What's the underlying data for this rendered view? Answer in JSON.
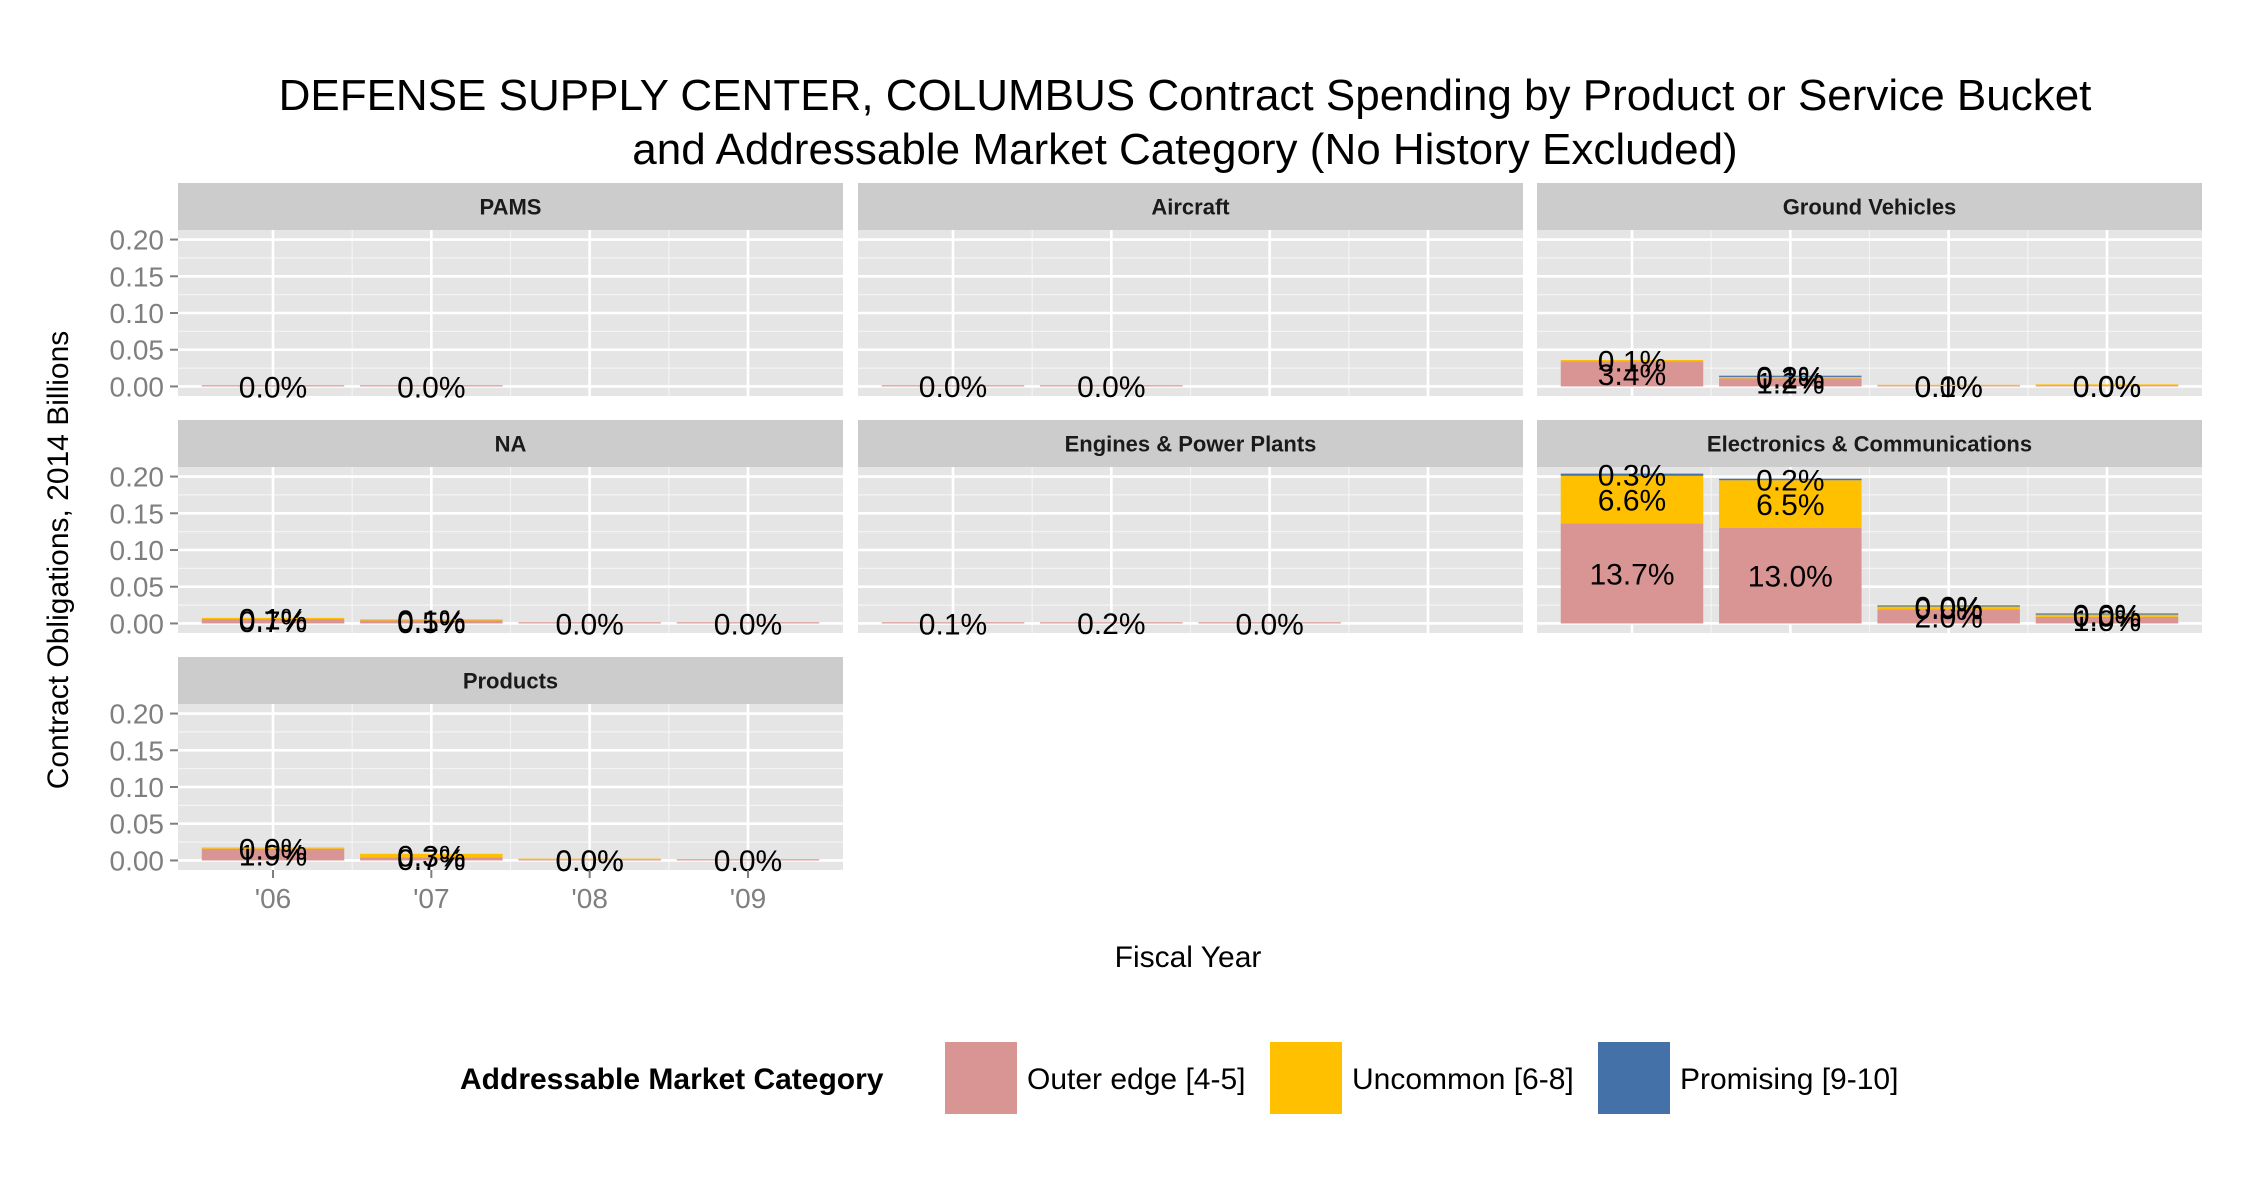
{
  "chart_data": {
    "type": "bar",
    "stacked": true,
    "title_lines": [
      "DEFENSE SUPPLY CENTER, COLUMBUS Contract Spending by Product or Service Bucket",
      "and Addressable Market Category (No History Excluded)"
    ],
    "xlabel": "Fiscal Year",
    "ylabel": "Contract Obligations, 2014 Billions",
    "ylim": [
      0,
      0.2
    ],
    "y_ticks": [
      "0.00",
      "0.05",
      "0.10",
      "0.15",
      "0.20"
    ],
    "x_ticks": [
      "'06",
      "'07",
      "'08",
      "'09"
    ],
    "grid": true,
    "legend": {
      "title": "Addressable Market Category",
      "position": "bottom",
      "entries": [
        {
          "name": "Outer edge [4-5]",
          "color": "#d99594"
        },
        {
          "name": "Uncommon [6-8]",
          "color": "#ffc000"
        },
        {
          "name": "Promising [9-10]",
          "color": "#4472a8"
        }
      ]
    },
    "colors": {
      "panel_bg": "#e5e5e5",
      "strip_bg": "#cccccc",
      "grid": "#ffffff"
    },
    "facets": [
      {
        "name": "PAMS",
        "bars": [
          {
            "year": "'06",
            "segments": [
              {
                "category": "Outer edge [4-5]",
                "value": 0.0,
                "label": "0.0%"
              }
            ]
          },
          {
            "year": "'07",
            "segments": [
              {
                "category": "Outer edge [4-5]",
                "value": 0.0,
                "label": "0.0%"
              }
            ]
          }
        ]
      },
      {
        "name": "Aircraft",
        "bars": [
          {
            "year": "'06",
            "segments": [
              {
                "category": "Outer edge [4-5]",
                "value": 0.0006,
                "label": "0.0%"
              }
            ]
          },
          {
            "year": "'07",
            "segments": [
              {
                "category": "Outer edge [4-5]",
                "value": 0.0006,
                "label": "0.0%"
              }
            ]
          }
        ]
      },
      {
        "name": "Ground Vehicles",
        "bars": [
          {
            "year": "'06",
            "segments": [
              {
                "category": "Outer edge [4-5]",
                "value": 0.034,
                "label": "3.4%"
              },
              {
                "category": "Uncommon [6-8]",
                "value": 0.002,
                "label": "0.1%"
              }
            ]
          },
          {
            "year": "'07",
            "segments": [
              {
                "category": "Outer edge [4-5]",
                "value": 0.011,
                "label": "1.2%"
              },
              {
                "category": "Uncommon [6-8]",
                "value": 0.002,
                "label": "0.1%"
              },
              {
                "category": "Promising [9-10]",
                "value": 0.0005,
                "label": "0.2%"
              }
            ]
          },
          {
            "year": "'08",
            "segments": [
              {
                "category": "Outer edge [4-5]",
                "value": 0.0006,
                "label": "0.0%"
              },
              {
                "category": "Uncommon [6-8]",
                "value": 0.0004,
                "label": "0.1%"
              }
            ]
          },
          {
            "year": "'09",
            "segments": [
              {
                "category": "Outer edge [4-5]",
                "value": 0.0012,
                "label": "0.0%"
              },
              {
                "category": "Uncommon [6-8]",
                "value": 0.0004,
                "label": "0.0%"
              }
            ]
          }
        ]
      },
      {
        "name": "NA",
        "bars": [
          {
            "year": "'06",
            "segments": [
              {
                "category": "Outer edge [4-5]",
                "value": 0.006,
                "label": "0.7%"
              },
              {
                "category": "Uncommon [6-8]",
                "value": 0.001,
                "label": "0.1%"
              }
            ]
          },
          {
            "year": "'07",
            "segments": [
              {
                "category": "Outer edge [4-5]",
                "value": 0.004,
                "label": "0.5%"
              },
              {
                "category": "Uncommon [6-8]",
                "value": 0.001,
                "label": "0.1%"
              }
            ]
          },
          {
            "year": "'08",
            "segments": [
              {
                "category": "Outer edge [4-5]",
                "value": 0.0,
                "label": "0.0%"
              }
            ]
          },
          {
            "year": "'09",
            "segments": [
              {
                "category": "Outer edge [4-5]",
                "value": 0.0,
                "label": "0.0%"
              }
            ]
          }
        ]
      },
      {
        "name": "Engines & Power Plants",
        "bars": [
          {
            "year": "'06",
            "segments": [
              {
                "category": "Outer edge [4-5]",
                "value": 0.0,
                "label": "0.1%"
              }
            ]
          },
          {
            "year": "'07",
            "segments": [
              {
                "category": "Outer edge [4-5]",
                "value": 0.0012,
                "label": "0.2%"
              }
            ]
          },
          {
            "year": "'08",
            "segments": [
              {
                "category": "Outer edge [4-5]",
                "value": 0.0,
                "label": "0.0%"
              }
            ]
          }
        ]
      },
      {
        "name": "Electronics & Communications",
        "bars": [
          {
            "year": "'06",
            "segments": [
              {
                "category": "Outer edge [4-5]",
                "value": 0.136,
                "label": "13.7%"
              },
              {
                "category": "Uncommon [6-8]",
                "value": 0.065,
                "label": "6.6%"
              },
              {
                "category": "Promising [9-10]",
                "value": 0.003,
                "label": "0.3%"
              }
            ]
          },
          {
            "year": "'07",
            "segments": [
              {
                "category": "Outer edge [4-5]",
                "value": 0.13,
                "label": "13.0%"
              },
              {
                "category": "Uncommon [6-8]",
                "value": 0.065,
                "label": "6.5%"
              },
              {
                "category": "Promising [9-10]",
                "value": 0.002,
                "label": "0.2%"
              }
            ]
          },
          {
            "year": "'08",
            "segments": [
              {
                "category": "Outer edge [4-5]",
                "value": 0.019,
                "label": "2.0%"
              },
              {
                "category": "Uncommon [6-8]",
                "value": 0.004,
                "label": "0.0%"
              },
              {
                "category": "Promising [9-10]",
                "value": 0.0004,
                "label": "0.0%"
              }
            ]
          },
          {
            "year": "'09",
            "segments": [
              {
                "category": "Outer edge [4-5]",
                "value": 0.009,
                "label": "1.0%"
              },
              {
                "category": "Uncommon [6-8]",
                "value": 0.003,
                "label": "0.0%"
              },
              {
                "category": "Promising [9-10]",
                "value": 0.0004,
                "label": "0.0%"
              }
            ]
          }
        ]
      },
      {
        "name": "Products",
        "bars": [
          {
            "year": "'06",
            "segments": [
              {
                "category": "Outer edge [4-5]",
                "value": 0.016,
                "label": "1.9%"
              },
              {
                "category": "Uncommon [6-8]",
                "value": 0.001,
                "label": "0.0%"
              }
            ]
          },
          {
            "year": "'07",
            "segments": [
              {
                "category": "Outer edge [4-5]",
                "value": 0.004,
                "label": "0.7%"
              },
              {
                "category": "Uncommon [6-8]",
                "value": 0.005,
                "label": "0.3%"
              }
            ]
          },
          {
            "year": "'08",
            "segments": [
              {
                "category": "Outer edge [4-5]",
                "value": 0.0008,
                "label": "0.0%"
              },
              {
                "category": "Uncommon [6-8]",
                "value": 0.0,
                "label": "0.0%"
              }
            ]
          },
          {
            "year": "'09",
            "segments": [
              {
                "category": "Outer edge [4-5]",
                "value": 0.0006,
                "label": "0.0%"
              }
            ]
          }
        ]
      }
    ]
  }
}
